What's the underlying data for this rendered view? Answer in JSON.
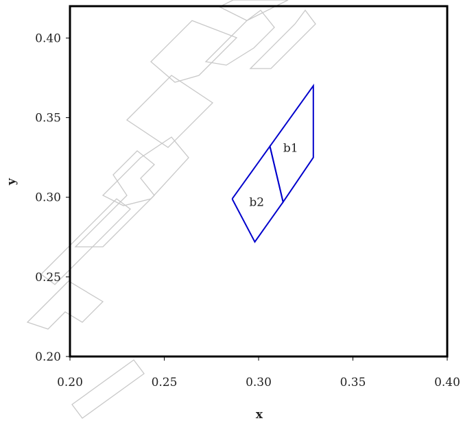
{
  "chart_data": {
    "type": "line",
    "title": "",
    "xlabel": "x",
    "ylabel": "y",
    "xlim": [
      0.2,
      0.4
    ],
    "ylim": [
      0.2,
      0.42
    ],
    "x_ticks": [
      "0.20",
      "0.25",
      "0.30",
      "0.35",
      "0.40"
    ],
    "y_ticks": [
      "0.20",
      "0.25",
      "0.30",
      "0.35",
      "0.40"
    ],
    "grid": false,
    "legend": "none",
    "line_color": "#0000cc",
    "series": [
      {
        "label": "b1",
        "label_at": [
          0.317,
          0.331
        ],
        "x": [
          0.306,
          0.329,
          0.329,
          0.313,
          0.306
        ],
        "y": [
          0.332,
          0.37,
          0.325,
          0.297,
          0.332
        ]
      },
      {
        "label": "b2",
        "label_at": [
          0.299,
          0.297
        ],
        "x": [
          0.286,
          0.306,
          0.313,
          0.298,
          0.286
        ],
        "y": [
          0.299,
          0.332,
          0.297,
          0.272,
          0.299
        ]
      }
    ]
  }
}
